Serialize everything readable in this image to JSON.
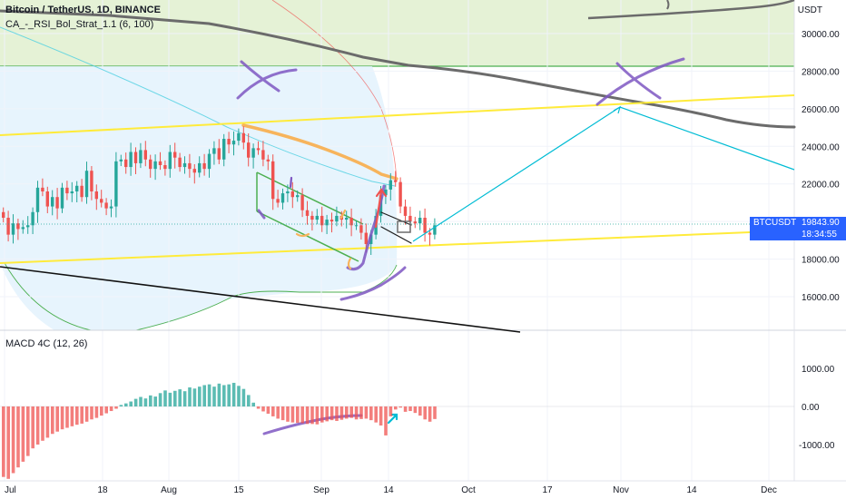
{
  "header": {
    "title": "Bitcoin / TetherUS, 1D, BINANCE",
    "indicator": "CA_-_RSI_Bol_Strat_1.1 (6, 100)",
    "macd_label": "MACD 4C (12, 26)",
    "price_unit": "USDT"
  },
  "price_badge": {
    "symbol": "BTCUSDT",
    "price": "19843.90",
    "countdown": "18:34:55"
  },
  "colors": {
    "up": "#26a69a",
    "down": "#ef5350",
    "yellow": "#ffeb3b",
    "orange": "#f7b45c",
    "purple": "#7e57c2",
    "teal": "#00bcd4",
    "green": "#4caf50",
    "gray": "#6b6b6b",
    "blue_fill": "#e3f2fd",
    "green_fill": "#dcedc8",
    "badge": "#2962ff"
  },
  "chart_data": [
    {
      "type": "candlestick",
      "title": "Bitcoin / TetherUS, 1D, BINANCE",
      "x_ticks": [
        "Jul",
        "18",
        "Aug",
        "15",
        "Sep",
        "14",
        "Oct",
        "17",
        "Nov",
        "14",
        "Dec"
      ],
      "y_ticks": [
        "30000.00",
        "28000.00",
        "26000.00",
        "24000.00",
        "22000.00",
        "20000.00",
        "18000.00",
        "16000.00"
      ],
      "ylim": [
        14000,
        31500
      ],
      "last_price": 19843.9,
      "close": [
        20200,
        19300,
        19900,
        19600,
        19700,
        19800,
        20500,
        21800,
        21600,
        20800,
        21300,
        20700,
        21800,
        21500,
        21600,
        21900,
        21300,
        22700,
        21600,
        21200,
        21000,
        20700,
        20800,
        23200,
        23300,
        22900,
        23700,
        23100,
        23800,
        23300,
        22800,
        23200,
        23000,
        22800,
        23700,
        23400,
        22900,
        23100,
        22800,
        22600,
        23100,
        22800,
        23600,
        23900,
        23300,
        24400,
        24100,
        24300,
        24700,
        24200,
        23400,
        23900,
        23800,
        23300,
        23200,
        21200,
        21000,
        21500,
        21600,
        21300,
        21400,
        20600,
        20300,
        20100,
        20300,
        19800,
        20100,
        20000,
        20300,
        20100,
        20200,
        19800,
        19800,
        19400,
        18800,
        19300,
        20300,
        21400,
        21700,
        22200,
        22100,
        20800,
        20300,
        20000,
        19900,
        20200,
        19400,
        19300,
        19800
      ]
    },
    {
      "type": "histogram",
      "title": "MACD 4C (12, 26)",
      "y_ticks": [
        "1000.00",
        "0.00",
        "-1000.00"
      ],
      "ylim": [
        -1900,
        1900
      ],
      "values": [
        -1850,
        -1900,
        -1750,
        -1600,
        -1450,
        -1300,
        -1100,
        -1000,
        -900,
        -820,
        -720,
        -660,
        -600,
        -560,
        -520,
        -480,
        -450,
        -400,
        -340,
        -300,
        -240,
        -180,
        -120,
        -60,
        40,
        80,
        130,
        200,
        250,
        210,
        290,
        260,
        350,
        420,
        360,
        410,
        450,
        400,
        500,
        470,
        520,
        560,
        580,
        520,
        600,
        560,
        580,
        620,
        540,
        460,
        300,
        100,
        -60,
        -130,
        -190,
        -260,
        -320,
        -360,
        -400,
        -420,
        -430,
        -440,
        -460,
        -460,
        -470,
        -420,
        -390,
        -360,
        -380,
        -350,
        -320,
        -300,
        -340,
        -330,
        -320,
        -360,
        -420,
        -500,
        -760,
        -260,
        -80,
        -30,
        -140,
        -120,
        -170,
        -240,
        -340,
        -400,
        -330
      ],
      "series_colors": [
        "#ef5350",
        "#26a69a"
      ]
    }
  ]
}
